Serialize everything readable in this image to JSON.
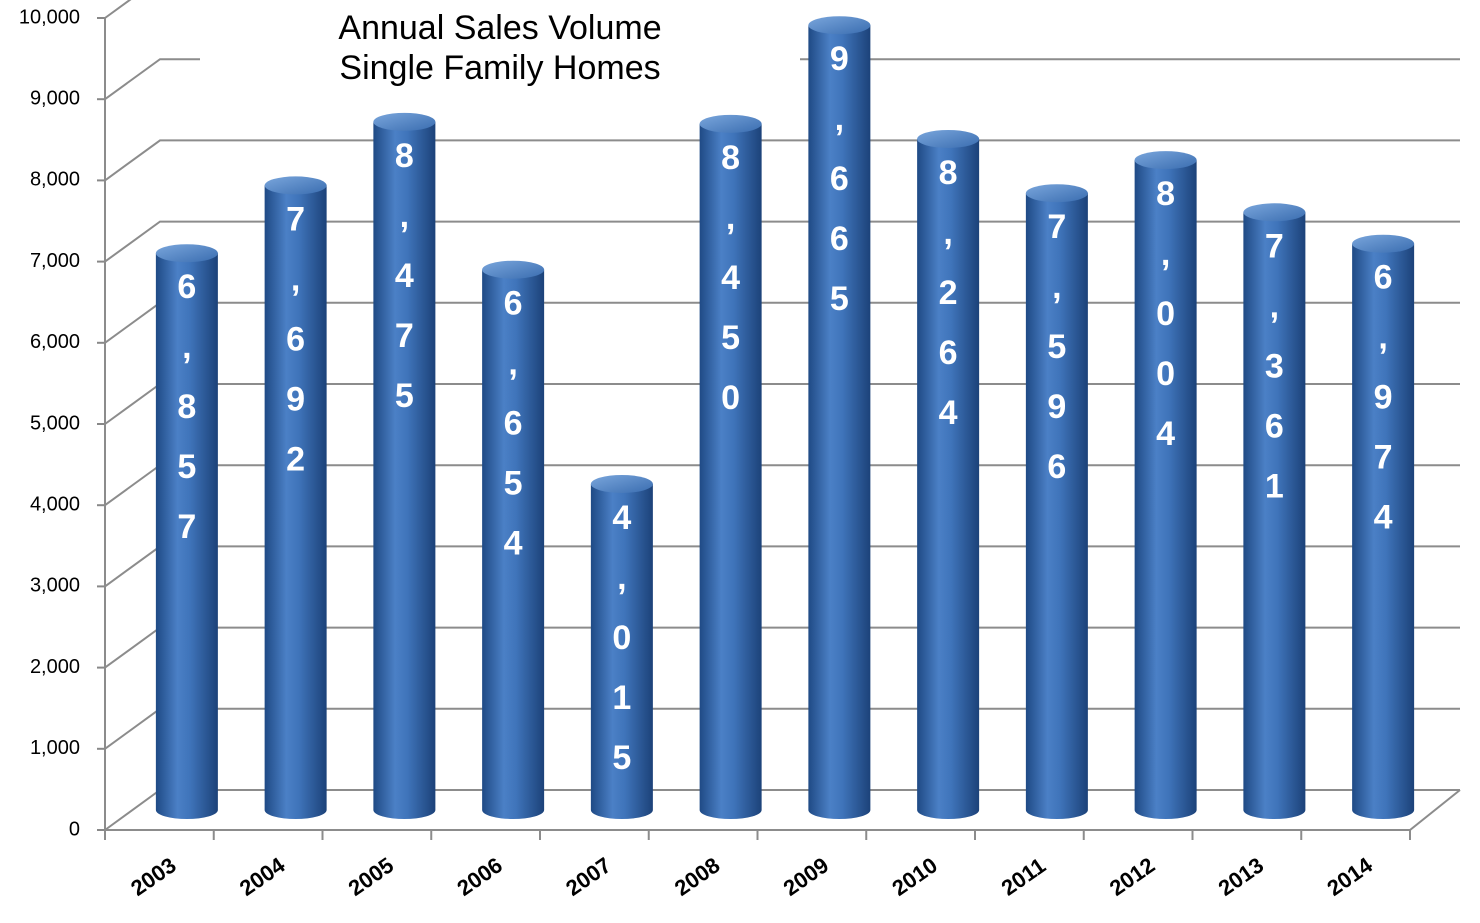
{
  "chart_data": {
    "type": "bar",
    "title": "Annual Sales Volume",
    "subtitle": "Single Family Homes",
    "categories": [
      "2003",
      "2004",
      "2005",
      "2006",
      "2007",
      "2008",
      "2009",
      "2010",
      "2011",
      "2012",
      "2013",
      "2014"
    ],
    "values": [
      6857,
      7692,
      8475,
      6654,
      4015,
      8450,
      9665,
      8264,
      7596,
      8004,
      7361,
      6974
    ],
    "value_labels": [
      "6,857",
      "7,692",
      "8,475",
      "6,654",
      "4,015",
      "8,450",
      "9,665",
      "8,264",
      "7,596",
      "8,004",
      "7,361",
      "6,974"
    ],
    "color": "#3c6fb4",
    "ylim": [
      0,
      10000
    ],
    "yticks": [
      0,
      {
        "value": 1000,
        "label": "1,000"
      },
      {
        "value": 2000,
        "label": "2,000"
      },
      {
        "value": 3000,
        "label": "3,000"
      },
      {
        "value": 4000,
        "label": "4,000"
      },
      {
        "value": 5000,
        "label": "5,000"
      },
      {
        "value": 6000,
        "label": "6,000"
      },
      {
        "value": 7000,
        "label": "7,000"
      },
      {
        "value": 8000,
        "label": "8,000"
      },
      {
        "value": 9000,
        "label": "9,000"
      },
      {
        "value": 10000,
        "label": "10,000"
      }
    ],
    "grid": true
  }
}
